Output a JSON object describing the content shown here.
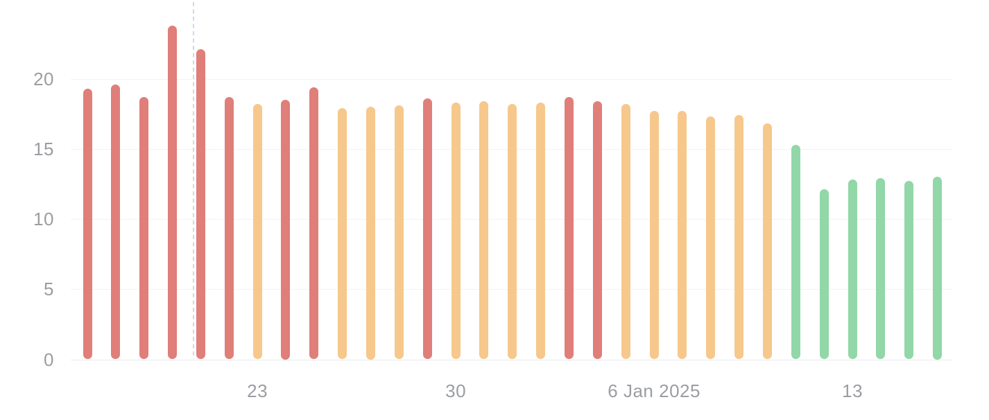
{
  "chart_data": {
    "type": "bar",
    "title": "",
    "xlabel": "",
    "ylabel": "",
    "ylim": [
      0,
      25
    ],
    "yticks": [
      0,
      5,
      10,
      15,
      20
    ],
    "ytick_labels": [
      "0",
      "5",
      "10",
      "15",
      "20"
    ],
    "x_ticks": [
      {
        "bar": 7,
        "label": "23"
      },
      {
        "bar": 14,
        "label": "30"
      },
      {
        "bar": 21,
        "label": "6 Jan 2025"
      },
      {
        "bar": 28,
        "label": "13"
      }
    ],
    "grid": "horizontal",
    "legend": "none",
    "bars": [
      {
        "value": 19.3,
        "color": "red"
      },
      {
        "value": 19.6,
        "color": "red"
      },
      {
        "value": 18.7,
        "color": "red"
      },
      {
        "value": 23.8,
        "color": "red"
      },
      {
        "value": 22.1,
        "color": "red"
      },
      {
        "value": 18.7,
        "color": "red"
      },
      {
        "value": 18.2,
        "color": "orange"
      },
      {
        "value": 18.5,
        "color": "red"
      },
      {
        "value": 19.4,
        "color": "red"
      },
      {
        "value": 17.9,
        "color": "orange"
      },
      {
        "value": 18.0,
        "color": "orange"
      },
      {
        "value": 18.1,
        "color": "orange"
      },
      {
        "value": 18.6,
        "color": "red"
      },
      {
        "value": 18.3,
        "color": "orange"
      },
      {
        "value": 18.4,
        "color": "orange"
      },
      {
        "value": 18.2,
        "color": "orange"
      },
      {
        "value": 18.3,
        "color": "orange"
      },
      {
        "value": 18.7,
        "color": "red"
      },
      {
        "value": 18.4,
        "color": "red"
      },
      {
        "value": 18.2,
        "color": "orange"
      },
      {
        "value": 17.7,
        "color": "orange"
      },
      {
        "value": 17.7,
        "color": "orange"
      },
      {
        "value": 17.3,
        "color": "orange"
      },
      {
        "value": 17.4,
        "color": "orange"
      },
      {
        "value": 16.8,
        "color": "orange"
      },
      {
        "value": 15.3,
        "color": "green"
      },
      {
        "value": 12.1,
        "color": "green"
      },
      {
        "value": 12.8,
        "color": "green"
      },
      {
        "value": 12.9,
        "color": "green"
      },
      {
        "value": 12.7,
        "color": "green"
      },
      {
        "value": 13.0,
        "color": "green"
      }
    ],
    "colors": {
      "red": "#e07e79",
      "orange": "#f6c88c",
      "green": "#92d7a7",
      "axis_text": "#9b9da1",
      "gridline": "#f2f3f6",
      "baseline": "#e6eaef",
      "marker_line": "#ccd9ec"
    },
    "marker_line": {
      "style": "dashed",
      "between_bars": [
        4,
        5
      ],
      "bar_offset": 3.75
    }
  }
}
